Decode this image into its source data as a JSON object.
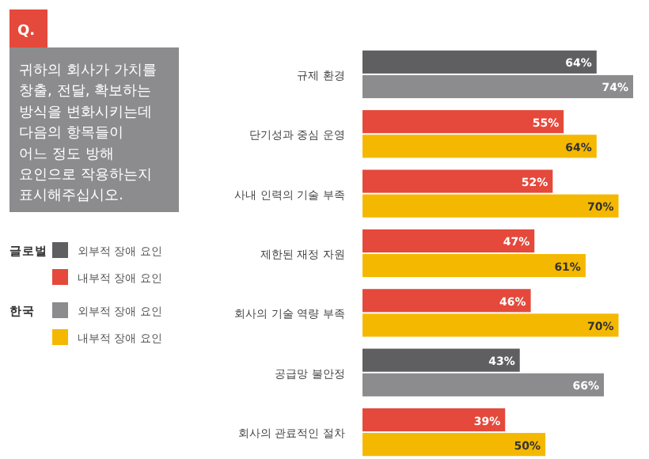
{
  "chart_data": {
    "type": "bar",
    "orientation": "horizontal",
    "title": "귀하의 회사가 가치를\n창출, 전달, 확보하는\n방식을 변화시키는데\n다음의 항목들이\n어느 정도 방해\n요인으로 작용하는지\n표시해주십시오.",
    "annotations": [
      "Q.",
      "글로벌",
      "한국"
    ],
    "categories": [
      "규제 환경",
      "단기성과 중심 운영",
      "사내 인력의 기술 부족",
      "제한된 재정 자원",
      "회사의 기술 역량 부족",
      "공급망 불안정",
      "회사의 관료적인 절차"
    ],
    "series": [
      {
        "name": "외부적 장애 요인",
        "color": "#5f5f61",
        "values": [
          64,
          null,
          null,
          null,
          null,
          43,
          null
        ],
        "value_labels": [
          "64%",
          null,
          null,
          null,
          null,
          "43%",
          null
        ]
      },
      {
        "name": "내부적 장애 요인",
        "color": "#e4493b",
        "values": [
          null,
          55,
          52,
          47,
          46,
          null,
          39
        ],
        "value_labels": [
          null,
          "55%",
          "52%",
          "47%",
          "46%",
          null,
          "39%"
        ]
      },
      {
        "name": "외부적 장애 요인",
        "color": "#8c8c8e",
        "values": [
          74,
          null,
          null,
          null,
          null,
          66,
          null
        ],
        "value_labels": [
          "74%",
          null,
          null,
          null,
          null,
          "66%",
          null
        ]
      },
      {
        "name": "내부적 장애 요인",
        "color": "#f5b800",
        "values": [
          null,
          64,
          70,
          61,
          70,
          null,
          50
        ],
        "value_labels": [
          null,
          "64%",
          "70%",
          "61%",
          "70%",
          null,
          "50%"
        ]
      }
    ],
    "legend": "left"
  }
}
